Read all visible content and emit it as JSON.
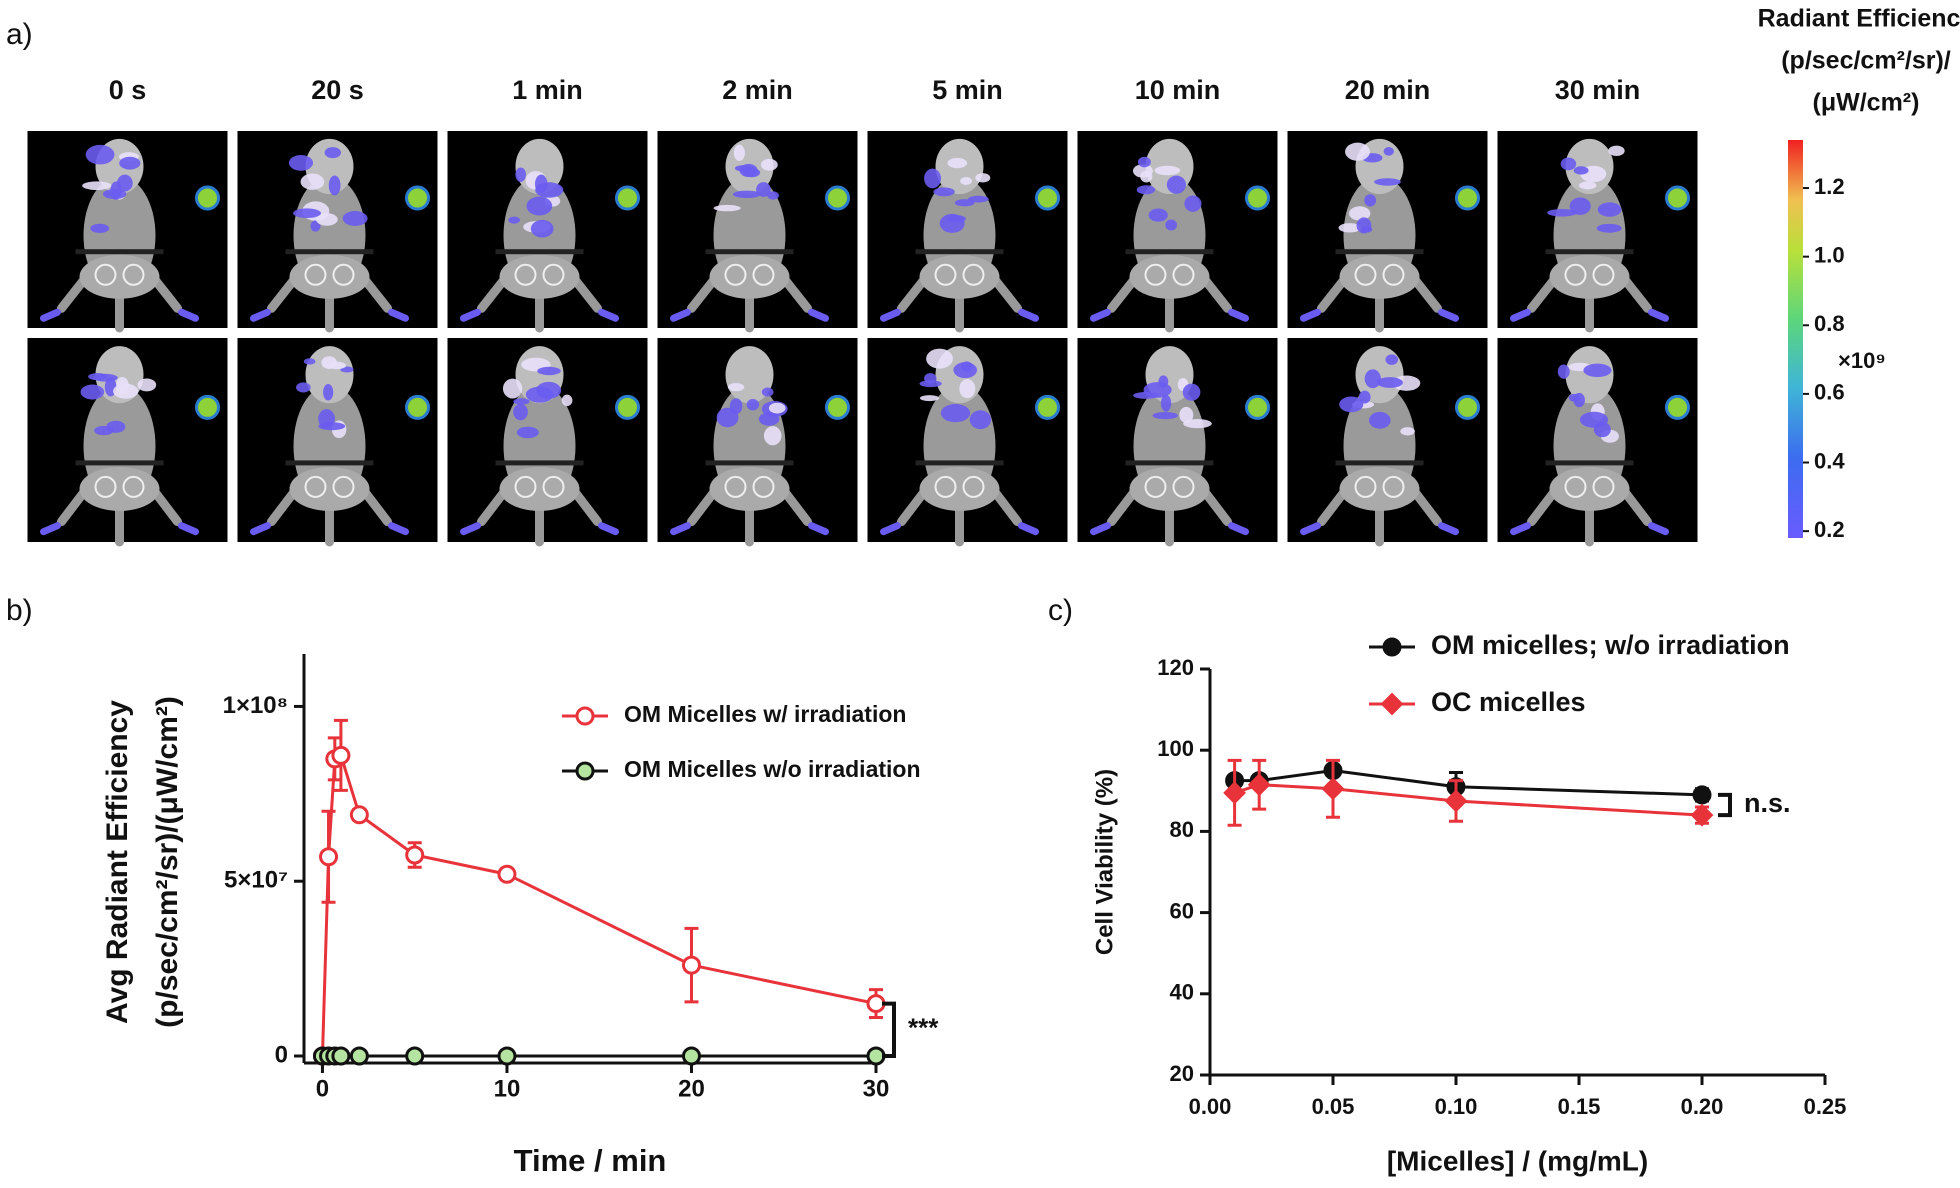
{
  "panel_a": {
    "label": "a)",
    "time_labels": [
      "0 s",
      "20 s",
      "1 min",
      "2 min",
      "5 min",
      "10 min",
      "20 min",
      "30 min"
    ],
    "colorbar": {
      "title": [
        "Radiant Efficiency",
        "(p/sec/cm²/sr)/",
        "(μW/cm²)"
      ],
      "multiplier": "×10⁹",
      "clim": [
        0.18,
        1.34
      ],
      "ticks": [
        0.2,
        0.4,
        0.6,
        0.8,
        {
          "value": 1,
          "label": "1.0"
        },
        1.2
      ]
    }
  },
  "chart_data": [
    {
      "type": "line",
      "panel_label": "b)",
      "ylabel": [
        "Avg Radiant Efficiency",
        "(p/sec/cm²/sr)/(μW/cm²)"
      ],
      "xlabel": "Time / min",
      "x": [
        0,
        0.33,
        0.67,
        1,
        2,
        5,
        10,
        20,
        30
      ],
      "xlim": [
        -1,
        30
      ],
      "xticks": [
        0,
        10,
        20,
        30
      ],
      "ylim": [
        -2000000,
        115000000
      ],
      "yticks": [
        0,
        {
          "value": 50000000,
          "label": "5×10⁷"
        },
        {
          "value": 100000000,
          "label": "1×10⁸"
        }
      ],
      "legend": "upper right",
      "annotation": "***",
      "series": [
        {
          "name": "OM Micelles w/ irradiation",
          "color": "#e8333a",
          "fill": "#ffffff",
          "marker": "circle",
          "values": [
            0,
            57000000,
            85000000,
            86000000,
            69000000,
            57500000,
            52000000,
            26000000,
            15000000
          ],
          "errors": [
            0,
            13000000,
            6000000,
            10000000,
            1500000,
            3500000,
            0,
            10500000,
            4000000
          ]
        },
        {
          "name": "OM Micelles w/o irradiation",
          "color": "#111111",
          "fill": "#b5e3a0",
          "marker": "circle",
          "values": [
            0,
            0,
            0,
            0,
            0,
            0,
            0,
            0,
            0
          ],
          "errors": [
            0,
            0,
            0,
            0,
            0,
            0,
            0,
            0,
            0
          ]
        }
      ]
    },
    {
      "type": "line",
      "panel_label": "c)",
      "ylabel": [
        "Cell Viability (%)"
      ],
      "xlabel": "[Micelles] / (mg/mL)",
      "x": [
        0.01,
        0.02,
        0.05,
        0.1,
        0.2
      ],
      "xlim": [
        0,
        0.25
      ],
      "xticks": [
        {
          "value": 0,
          "label": "0.00"
        },
        {
          "value": 0.05,
          "label": "0.05"
        },
        {
          "value": 0.1,
          "label": "0.10"
        },
        {
          "value": 0.15,
          "label": "0.15"
        },
        {
          "value": 0.2,
          "label": "0.20"
        },
        {
          "value": 0.25,
          "label": "0.25"
        }
      ],
      "ylim": [
        20,
        120
      ],
      "yticks": [
        20,
        40,
        60,
        80,
        100,
        120
      ],
      "legend": "upper center",
      "annotation": "n.s.",
      "series": [
        {
          "name": "OM micelles; w/o irradiation",
          "color": "#111111",
          "fill": "#111111",
          "marker": "circle",
          "values": [
            92.5,
            92.5,
            95,
            91,
            89
          ],
          "errors": [
            0,
            0,
            0,
            3.5,
            1.5
          ]
        },
        {
          "name": "OC micelles",
          "color": "#e8333a",
          "fill": "#e8333a",
          "marker": "diamond",
          "values": [
            89.5,
            91.5,
            90.5,
            87.5,
            84
          ],
          "errors": [
            8,
            6,
            7,
            5,
            2
          ]
        }
      ]
    }
  ]
}
